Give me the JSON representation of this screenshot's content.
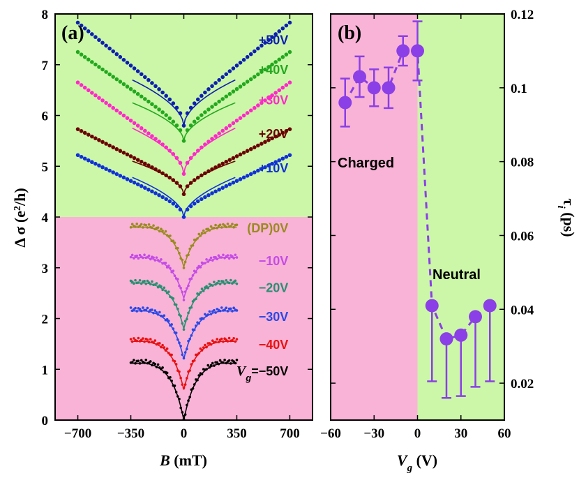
{
  "chart_data": [
    {
      "type": "scatter",
      "panel_label": "(a)",
      "xlabel_italic": "B",
      "xlabel_rest": " (mT)",
      "ylabel": "Δ σ  (e",
      "ylabel_sup": "2",
      "ylabel_end": "/h)",
      "xlim": [
        -850,
        850
      ],
      "ylim": [
        0,
        8
      ],
      "xticks": [
        -700,
        -350,
        0,
        350,
        700
      ],
      "xtick_labels": [
        "−700",
        "−350",
        "0",
        "350",
        "700"
      ],
      "yticks": [
        0,
        1,
        2,
        3,
        4,
        5,
        6,
        7,
        8
      ],
      "ytick_labels": [
        "0",
        "1",
        "2",
        "3",
        "4",
        "5",
        "6",
        "7",
        "8"
      ],
      "region_split_y": 4,
      "region_colors": {
        "upper": "#ccf7a8",
        "lower": "#f9b3d6"
      },
      "series": [
        {
          "name": "+50V",
          "label": "+50V",
          "color": "#0d1fb0",
          "range": 700,
          "center": 5.8,
          "edge": 7.83,
          "fit_edge": 6.7,
          "fit_range": 340,
          "label_x": 690,
          "label_y": 7.4
        },
        {
          "name": "+40V",
          "label": "+40V",
          "color": "#22a81e",
          "range": 700,
          "center": 5.5,
          "edge": 7.25,
          "fit_edge": 6.25,
          "fit_range": 340,
          "label_x": 690,
          "label_y": 6.82
        },
        {
          "name": "+30V",
          "label": "+30V",
          "color": "#ff28c8",
          "range": 700,
          "center": 4.85,
          "edge": 6.65,
          "fit_edge": 5.75,
          "fit_range": 340,
          "label_x": 690,
          "label_y": 6.22
        },
        {
          "name": "+20V",
          "label": "+20V",
          "color": "#6b0000",
          "range": 700,
          "center": 4.45,
          "edge": 5.73,
          "fit_edge": 5.1,
          "fit_range": 340,
          "label_x": 690,
          "label_y": 5.55
        },
        {
          "name": "+10V",
          "label": "+10V",
          "color": "#1030d8",
          "range": 700,
          "center": 4.0,
          "edge": 5.22,
          "fit_edge": 4.78,
          "fit_range": 340,
          "label_x": 690,
          "label_y": 4.88
        },
        {
          "name": "(DP)0V",
          "label": "(DP)0V",
          "color": "#9a8a20",
          "range": 350,
          "center": 3.02,
          "edge": 3.83,
          "fit_edge": 3.8,
          "fit_range": 350,
          "label_x": 690,
          "label_y": 3.7
        },
        {
          "name": "-10V",
          "label": "−10V",
          "color": "#c44ce6",
          "range": 350,
          "center": 2.4,
          "edge": 3.22,
          "fit_edge": 3.2,
          "fit_range": 350,
          "label_x": 690,
          "label_y": 3.05
        },
        {
          "name": "-20V",
          "label": "−20V",
          "color": "#2a8e72",
          "range": 350,
          "center": 1.8,
          "edge": 2.72,
          "fit_edge": 2.7,
          "fit_range": 350,
          "label_x": 690,
          "label_y": 2.52
        },
        {
          "name": "-30V",
          "label": "−30V",
          "color": "#2a48e6",
          "range": 350,
          "center": 1.2,
          "edge": 2.18,
          "fit_edge": 2.15,
          "fit_range": 350,
          "label_x": 690,
          "label_y": 1.95
        },
        {
          "name": "-40V",
          "label": "−40V",
          "color": "#e81010",
          "range": 350,
          "center": 0.6,
          "edge": 1.58,
          "fit_edge": 1.55,
          "fit_range": 350,
          "label_x": 690,
          "label_y": 1.4
        },
        {
          "name": "-50V",
          "label": "=−50V",
          "label_prefix": "V",
          "label_sub": "g",
          "color": "#000000",
          "range": 350,
          "center": 0.0,
          "edge": 1.15,
          "fit_edge": 1.12,
          "fit_range": 350,
          "label_x": 690,
          "label_y": 0.88
        }
      ]
    },
    {
      "type": "scatter",
      "panel_label": "(b)",
      "xlabel_italic": "V",
      "xlabel_sub": "g",
      "xlabel_rest": "  (V)",
      "ylabel_greek": "τ",
      "ylabel_sub": "i",
      "ylabel_rest": " (ps)",
      "xlim": [
        -60,
        60
      ],
      "ylim": [
        0.01,
        0.12
      ],
      "xticks": [
        -60,
        -30,
        0,
        30,
        60
      ],
      "xtick_labels": [
        "−60",
        "−30",
        "0",
        "30",
        "60"
      ],
      "yticks": [
        0.02,
        0.04,
        0.06,
        0.08,
        0.1,
        0.12
      ],
      "ytick_labels": [
        "0.02",
        "0.04",
        "0.06",
        "0.08",
        "0.1",
        "0.12"
      ],
      "region_split_x": 0,
      "region_colors": {
        "left": "#f9b3d6",
        "right": "#ccf7a8"
      },
      "region_labels": [
        "Charged",
        "Neutral"
      ],
      "marker_color": "#8b3fe6",
      "points": [
        {
          "x": -50,
          "y": 0.096,
          "err_lo": 0.0065,
          "err_hi": 0.0065
        },
        {
          "x": -40,
          "y": 0.103,
          "err_lo": 0.0055,
          "err_hi": 0.0055
        },
        {
          "x": -30,
          "y": 0.1,
          "err_lo": 0.005,
          "err_hi": 0.005
        },
        {
          "x": -20,
          "y": 0.1,
          "err_lo": 0.0055,
          "err_hi": 0.0055
        },
        {
          "x": -10,
          "y": 0.11,
          "err_lo": 0.004,
          "err_hi": 0.004
        },
        {
          "x": 0,
          "y": 0.11,
          "err_lo": 0.008,
          "err_hi": 0.008
        },
        {
          "x": 10,
          "y": 0.041,
          "err_lo": 0.0205,
          "err_hi": 0
        },
        {
          "x": 20,
          "y": 0.032,
          "err_lo": 0.016,
          "err_hi": 0
        },
        {
          "x": 30,
          "y": 0.033,
          "err_lo": 0.0165,
          "err_hi": 0
        },
        {
          "x": 40,
          "y": 0.038,
          "err_lo": 0.019,
          "err_hi": 0
        },
        {
          "x": 50,
          "y": 0.041,
          "err_lo": 0.0205,
          "err_hi": 0
        }
      ]
    }
  ]
}
